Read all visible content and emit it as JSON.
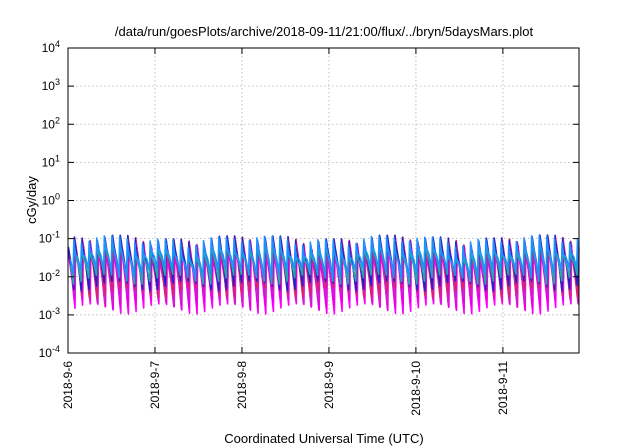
{
  "chart_data": {
    "type": "line",
    "title": "/data/run/goesPlots/archive/2018-09-11/21:00/flux/../bryn/5daysMars.plot",
    "xlabel": "Coordinated Universal Time (UTC)",
    "ylabel": "cGy/day",
    "yscale": "log",
    "ylim": [
      0.0001,
      10000
    ],
    "xlim": [
      "2018-09-06 00:00",
      "2018-09-11 21:00"
    ],
    "grid": true,
    "y_ticks": [
      {
        "mant": "10",
        "exp": "-4"
      },
      {
        "mant": "10",
        "exp": "-3"
      },
      {
        "mant": "10",
        "exp": "-2"
      },
      {
        "mant": "10",
        "exp": "-1"
      },
      {
        "mant": "10",
        "exp": "0"
      },
      {
        "mant": "10",
        "exp": "1"
      },
      {
        "mant": "10",
        "exp": "2"
      },
      {
        "mant": "10",
        "exp": "3"
      },
      {
        "mant": "10",
        "exp": "4"
      }
    ],
    "x_ticks": [
      "2018-9-6",
      "2018-9-7",
      "2018-9-8",
      "2018-9-9",
      "2018-9-10",
      "2018-9-11"
    ],
    "cycles_per_day": 11.4,
    "series": [
      {
        "color": "#ff00ff",
        "peak": 0.05,
        "trough": 0.0015
      },
      {
        "color": "#e600e6",
        "peak": 0.06,
        "trough": 0.002
      },
      {
        "color": "#cc22cc",
        "peak": 0.07,
        "trough": 0.0028
      },
      {
        "color": "#dd2266",
        "peak": 0.085,
        "trough": 0.004
      },
      {
        "color": "#2222cc",
        "peak": 0.09,
        "trough": 0.006
      },
      {
        "color": "#22aaaa",
        "peak": 0.07,
        "trough": 0.009
      },
      {
        "color": "#1e90ff",
        "peak": 0.085,
        "trough": 0.013
      }
    ]
  }
}
